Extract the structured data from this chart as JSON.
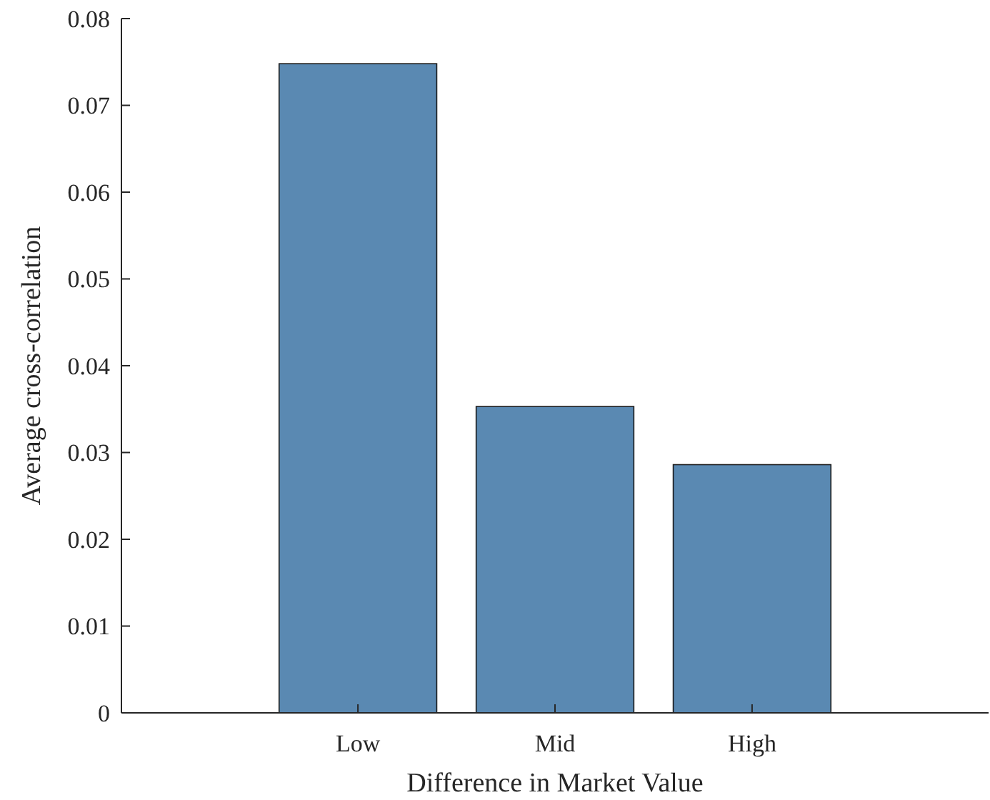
{
  "chart_data": {
    "type": "bar",
    "xlabel": "Difference in Market Value",
    "ylabel": "Average cross-correlation",
    "categories": [
      "Low",
      "Mid",
      "High"
    ],
    "values": [
      0.0748,
      0.0353,
      0.0286
    ],
    "color": "#5a89b2",
    "ylim": [
      0,
      0.08
    ],
    "yticks": [
      0,
      0.01,
      0.02,
      0.03,
      0.04,
      0.05,
      0.06,
      0.07,
      0.08
    ],
    "grid": false
  }
}
